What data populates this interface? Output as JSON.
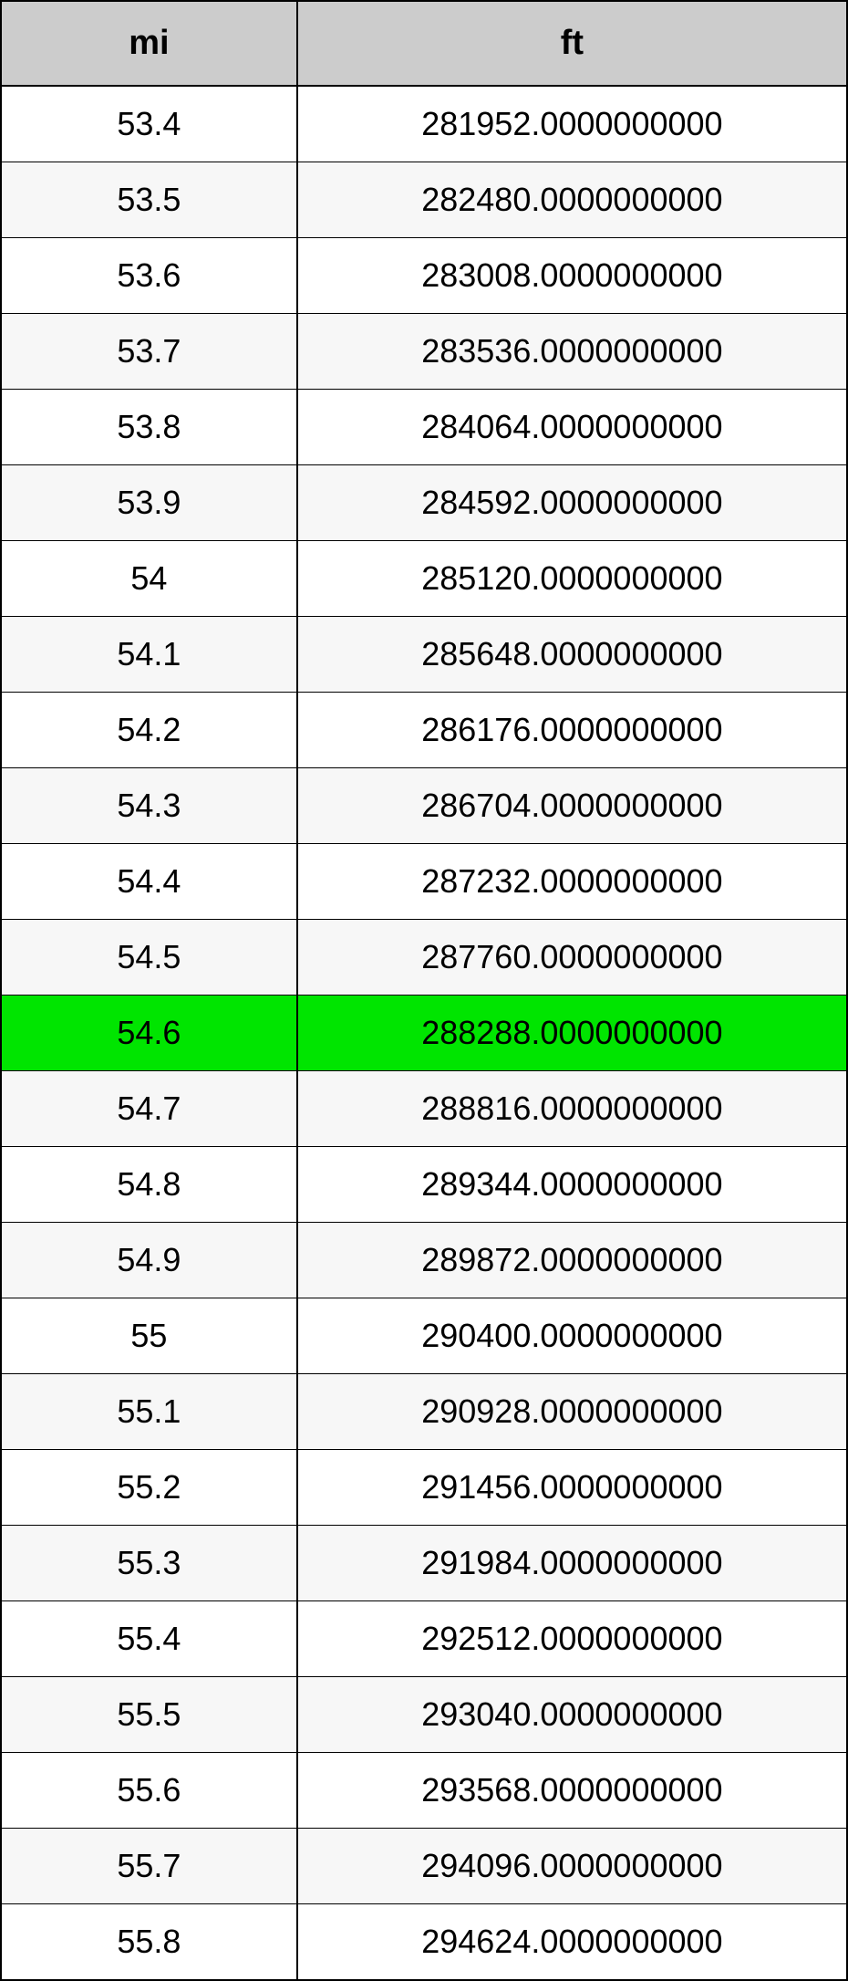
{
  "table": {
    "columns": [
      "mi",
      "ft"
    ],
    "header_bg": "#cccccc",
    "header_fontsize": 38,
    "cell_fontsize": 36,
    "border_color": "#000000",
    "row_bg_odd": "#ffffff",
    "row_bg_even": "#f7f7f7",
    "highlight_bg": "#00e500",
    "highlight_index": 12,
    "col_widths": [
      "35%",
      "65%"
    ],
    "rows": [
      {
        "mi": "53.4",
        "ft": "281952.0000000000"
      },
      {
        "mi": "53.5",
        "ft": "282480.0000000000"
      },
      {
        "mi": "53.6",
        "ft": "283008.0000000000"
      },
      {
        "mi": "53.7",
        "ft": "283536.0000000000"
      },
      {
        "mi": "53.8",
        "ft": "284064.0000000000"
      },
      {
        "mi": "53.9",
        "ft": "284592.0000000000"
      },
      {
        "mi": "54",
        "ft": "285120.0000000000"
      },
      {
        "mi": "54.1",
        "ft": "285648.0000000000"
      },
      {
        "mi": "54.2",
        "ft": "286176.0000000000"
      },
      {
        "mi": "54.3",
        "ft": "286704.0000000000"
      },
      {
        "mi": "54.4",
        "ft": "287232.0000000000"
      },
      {
        "mi": "54.5",
        "ft": "287760.0000000000"
      },
      {
        "mi": "54.6",
        "ft": "288288.0000000000"
      },
      {
        "mi": "54.7",
        "ft": "288816.0000000000"
      },
      {
        "mi": "54.8",
        "ft": "289344.0000000000"
      },
      {
        "mi": "54.9",
        "ft": "289872.0000000000"
      },
      {
        "mi": "55",
        "ft": "290400.0000000000"
      },
      {
        "mi": "55.1",
        "ft": "290928.0000000000"
      },
      {
        "mi": "55.2",
        "ft": "291456.0000000000"
      },
      {
        "mi": "55.3",
        "ft": "291984.0000000000"
      },
      {
        "mi": "55.4",
        "ft": "292512.0000000000"
      },
      {
        "mi": "55.5",
        "ft": "293040.0000000000"
      },
      {
        "mi": "55.6",
        "ft": "293568.0000000000"
      },
      {
        "mi": "55.7",
        "ft": "294096.0000000000"
      },
      {
        "mi": "55.8",
        "ft": "294624.0000000000"
      }
    ]
  }
}
